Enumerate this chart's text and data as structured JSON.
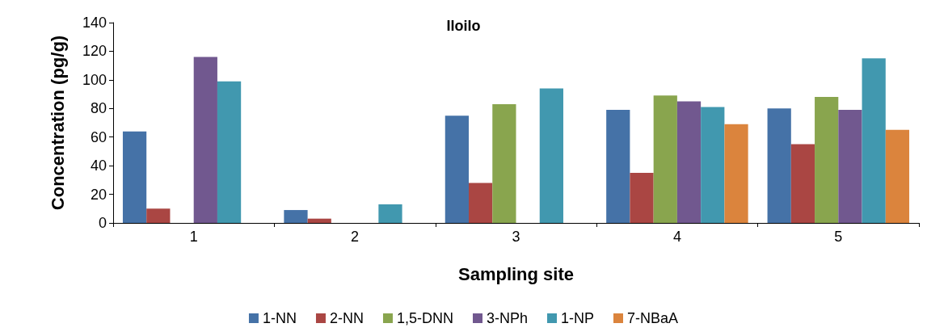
{
  "chart_data": {
    "type": "bar",
    "title": "Iloilo",
    "xlabel": "Sampling site",
    "ylabel": "Concentration (pg/g)",
    "categories": [
      "1",
      "2",
      "3",
      "4",
      "5"
    ],
    "series": [
      {
        "name": "1-NN",
        "color": "#4572a7",
        "values": [
          64,
          9,
          75,
          79,
          80
        ]
      },
      {
        "name": "2-NN",
        "color": "#aa4643",
        "values": [
          10,
          3,
          28,
          35,
          55
        ]
      },
      {
        "name": "1,5-DNN",
        "color": "#89a54e",
        "values": [
          null,
          null,
          83,
          89,
          88
        ]
      },
      {
        "name": "3-NPh",
        "color": "#71588f",
        "values": [
          116,
          null,
          null,
          85,
          79
        ]
      },
      {
        "name": "1-NP",
        "color": "#4198af",
        "values": [
          99,
          13,
          94,
          81,
          115
        ]
      },
      {
        "name": "7-NBaA",
        "color": "#db843d",
        "values": [
          null,
          null,
          null,
          69,
          65
        ]
      }
    ],
    "ylim": [
      0,
      140
    ],
    "yticks": [
      0,
      20,
      40,
      60,
      80,
      100,
      120,
      140
    ],
    "grid": false,
    "legend": "bottom"
  }
}
